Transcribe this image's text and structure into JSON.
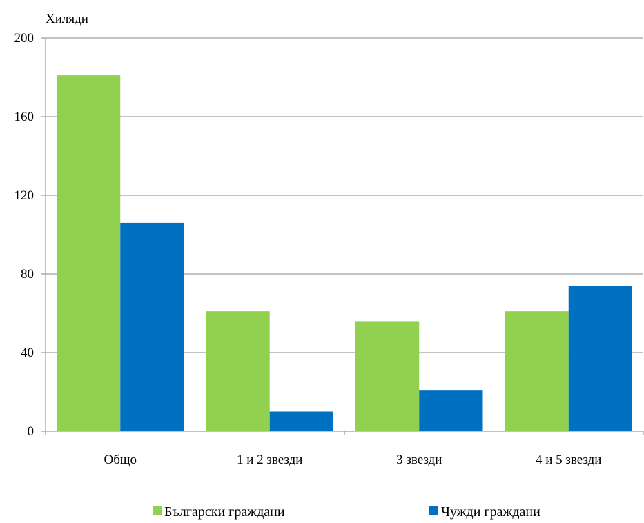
{
  "chart_data": {
    "type": "bar",
    "unit_label": "Хиляди",
    "categories": [
      "Общо",
      "1 и 2 звезди",
      "3 звезди",
      "4 и 5 звезди"
    ],
    "series": [
      {
        "name": "Български граждани",
        "color": "#92d050",
        "values": [
          181,
          61,
          56,
          61
        ]
      },
      {
        "name": "Чужди граждани",
        "color": "#0070c0",
        "values": [
          106,
          10,
          21,
          74
        ]
      }
    ],
    "ylim": [
      0,
      200
    ],
    "yticks": [
      0,
      40,
      80,
      120,
      160,
      200
    ],
    "grid": true,
    "legend_position": "bottom"
  }
}
